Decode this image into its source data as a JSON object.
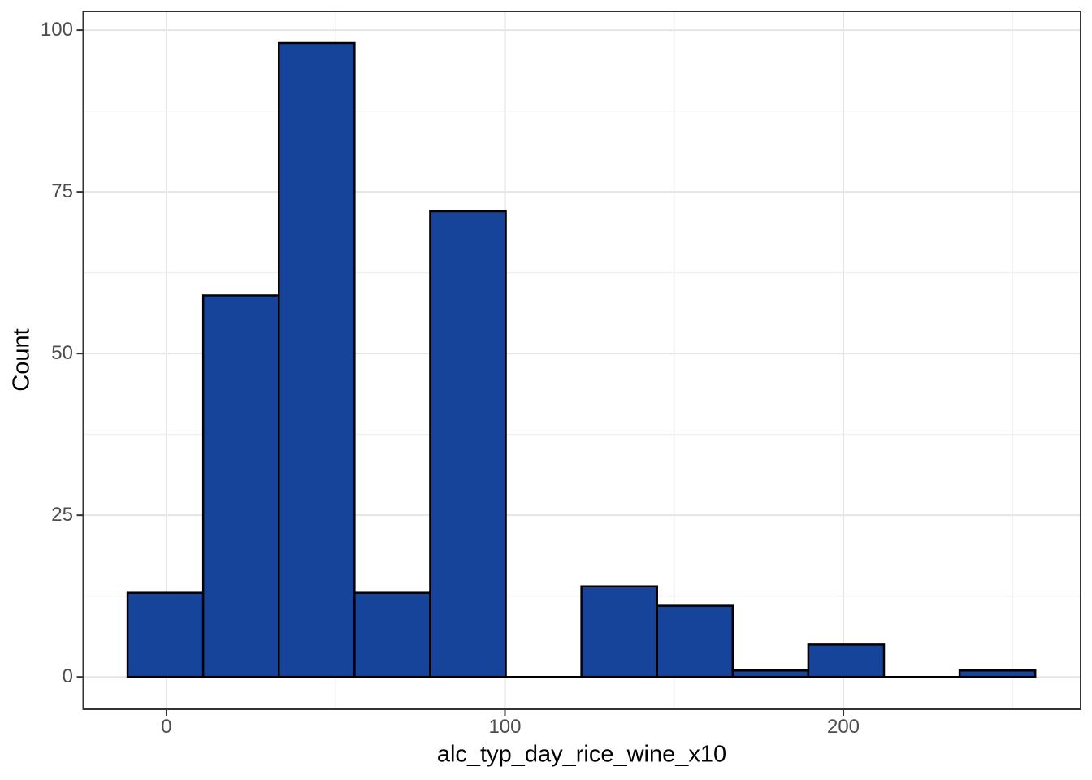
{
  "figure": {
    "background_color": "#FFFFFF"
  },
  "chart_data": {
    "type": "bar",
    "subtype": "histogram",
    "title": "",
    "xlabel": "alc_typ_day_rice_wine_x10",
    "ylabel": "Count",
    "bin_start": -11.5,
    "bin_width": 22.35,
    "counts": [
      13,
      59,
      98,
      13,
      72,
      0,
      14,
      11,
      1,
      5,
      0,
      1
    ],
    "x_ticks": [
      0,
      100,
      200
    ],
    "x_tick_labels": [
      "0",
      "100",
      "200"
    ],
    "x_minor_ticks": [
      50,
      150,
      250
    ],
    "y_ticks": [
      0,
      25,
      50,
      75,
      100
    ],
    "y_tick_labels": [
      "0",
      "25",
      "50",
      "75",
      "100"
    ],
    "y_minor_ticks": [
      12.5,
      37.5,
      62.5,
      87.5
    ],
    "xlim": [
      -24.6,
      270.1
    ],
    "ylim": [
      -5,
      102.9
    ],
    "grid": "on",
    "legend": "none",
    "colors": {
      "bar_fill": "#17449B",
      "bar_stroke": "#000000",
      "panel_border": "#333333",
      "tick_mark": "#333333",
      "grid_major": "#E5E5E5",
      "grid_minor": "#F0F0F0",
      "tick_text": "#4D4D4D",
      "title_text": "#000000"
    }
  }
}
